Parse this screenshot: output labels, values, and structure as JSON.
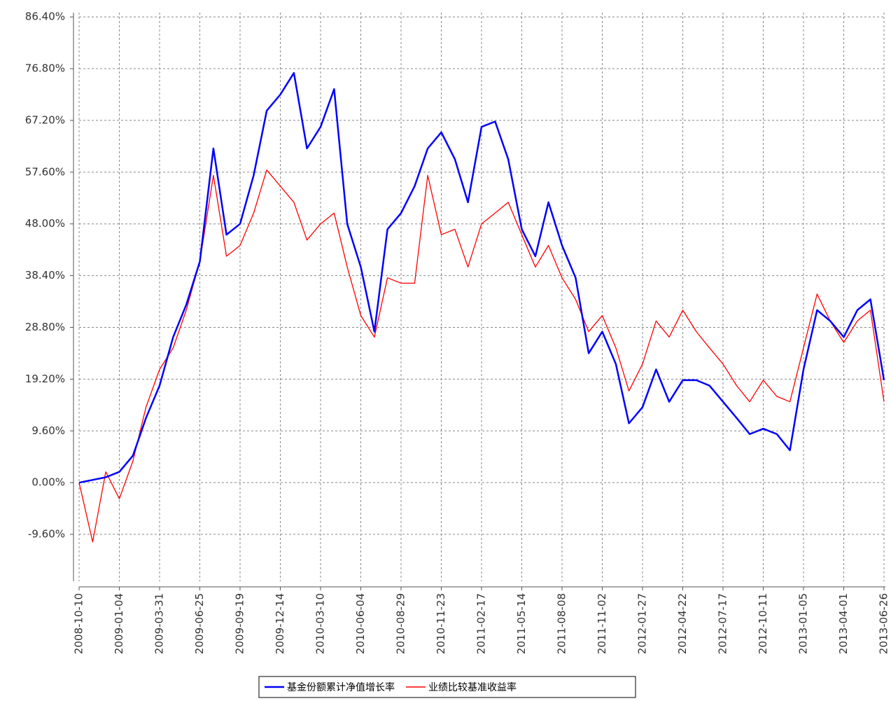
{
  "chart_data": {
    "type": "line",
    "x": [
      "2008-10-10",
      "2008-11-08",
      "2008-12-06",
      "2009-01-04",
      "2009-02-02",
      "2009-03-02",
      "2009-03-31",
      "2009-04-29",
      "2009-05-27",
      "2009-06-25",
      "2009-07-24",
      "2009-08-21",
      "2009-09-19",
      "2009-10-18",
      "2009-11-15",
      "2009-12-14",
      "2010-01-12",
      "2010-02-09",
      "2010-03-10",
      "2010-04-08",
      "2010-05-06",
      "2010-06-04",
      "2010-07-03",
      "2010-07-31",
      "2010-08-29",
      "2010-09-27",
      "2010-10-25",
      "2010-11-23",
      "2010-12-22",
      "2011-01-19",
      "2011-02-17",
      "2011-03-18",
      "2011-04-15",
      "2011-05-14",
      "2011-06-12",
      "2011-07-10",
      "2011-08-08",
      "2011-09-06",
      "2011-10-04",
      "2011-11-02",
      "2011-12-01",
      "2011-12-29",
      "2012-01-27",
      "2012-02-25",
      "2012-03-24",
      "2012-04-22",
      "2012-05-21",
      "2012-06-18",
      "2012-07-17",
      "2012-08-15",
      "2012-09-12",
      "2012-10-11",
      "2012-11-09",
      "2012-12-07",
      "2013-01-05",
      "2013-02-03",
      "2013-03-03",
      "2013-04-01",
      "2013-04-30",
      "2013-05-28",
      "2013-06-26"
    ],
    "series": [
      {
        "name": "基金份额累计净值增长率",
        "color": "#0000ff",
        "values": [
          0,
          0.5,
          1,
          2,
          5,
          12,
          18,
          27,
          33,
          41,
          62,
          46,
          48,
          57,
          69,
          72,
          76,
          62,
          66,
          73,
          48,
          40,
          28,
          47,
          50,
          55,
          62,
          65,
          60,
          52,
          66,
          67,
          60,
          47,
          42,
          52,
          44,
          38,
          24,
          28,
          22,
          11,
          14,
          21,
          15,
          19,
          19,
          18,
          15,
          12,
          9,
          10,
          9,
          6,
          21,
          32,
          30,
          27,
          32,
          34,
          19
        ]
      },
      {
        "name": "业绩比较基准收益率",
        "color": "#ff0000",
        "values": [
          0,
          -11,
          2,
          -3,
          4,
          14,
          21,
          25,
          32,
          41,
          57,
          42,
          44,
          50,
          58,
          55,
          52,
          45,
          48,
          50,
          40,
          31,
          27,
          38,
          37,
          37,
          57,
          46,
          47,
          40,
          48,
          50,
          52,
          46,
          40,
          44,
          38,
          34,
          28,
          31,
          25,
          17,
          22,
          30,
          27,
          32,
          28,
          25,
          22,
          18,
          15,
          19,
          16,
          15,
          25,
          35,
          30,
          26,
          30,
          32,
          15
        ]
      }
    ],
    "xlim": [
      "2008-10-10",
      "2013-06-29"
    ],
    "xticks": [
      "2008-10-10",
      "2009-01-04",
      "2009-03-31",
      "2009-06-25",
      "2009-09-19",
      "2009-12-14",
      "2010-03-10",
      "2010-06-04",
      "2010-08-29",
      "2010-11-23",
      "2011-02-17",
      "2011-05-14",
      "2011-08-08",
      "2011-11-02",
      "2012-01-27",
      "2012-04-22",
      "2012-07-17",
      "2012-10-11",
      "2013-01-05",
      "2013-04-01",
      "2013-06-26"
    ],
    "ylim": [
      -18.3,
      87.2
    ],
    "yticks": [
      {
        "value": -9.6,
        "label": "-9.60%"
      },
      {
        "value": 0,
        "label": "0.00%"
      },
      {
        "value": 9.6,
        "label": "9.60%"
      },
      {
        "value": 19.2,
        "label": "19.20%"
      },
      {
        "value": 28.8,
        "label": "28.80%"
      },
      {
        "value": 38.4,
        "label": "38.40%"
      },
      {
        "value": 48,
        "label": "48.00%"
      },
      {
        "value": 57.6,
        "label": "57.60%"
      },
      {
        "value": 67.2,
        "label": "67.20%"
      },
      {
        "value": 76.8,
        "label": "76.80%"
      },
      {
        "value": 86.4,
        "label": "86.40%"
      }
    ],
    "grid": true
  }
}
